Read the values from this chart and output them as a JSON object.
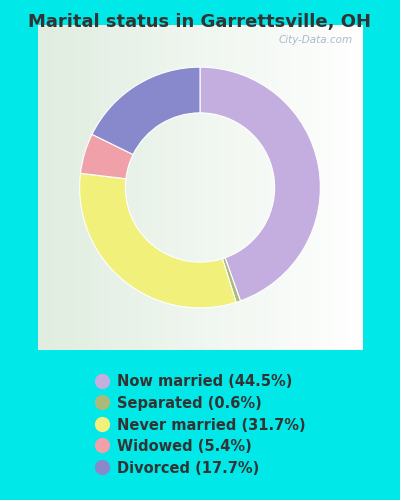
{
  "title": "Marital status in Garrettsville, OH",
  "slices": [
    44.5,
    0.6,
    31.7,
    5.4,
    17.7
  ],
  "labels": [
    "Now married (44.5%)",
    "Separated (0.6%)",
    "Never married (31.7%)",
    "Widowed (5.4%)",
    "Divorced (17.7%)"
  ],
  "colors": [
    "#c4aee0",
    "#aaba7a",
    "#f0f07a",
    "#f0a0a8",
    "#8888cc"
  ],
  "bg_color": "#00e8e8",
  "chart_bg_color": "#e0f0e8",
  "title_fontsize": 13,
  "legend_fontsize": 10.5,
  "watermark": "City-Data.com",
  "donut_width": 0.38,
  "startangle": 90
}
